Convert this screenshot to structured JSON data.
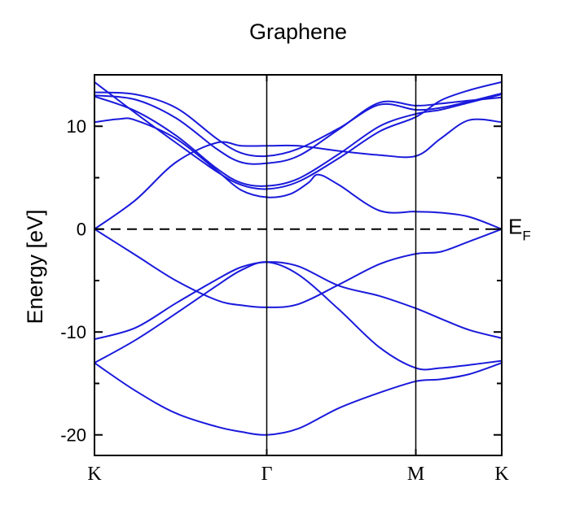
{
  "chart_data": {
    "type": "line",
    "title": "Graphene",
    "ylabel": "Energy [eV]",
    "ylim": [
      -22,
      15
    ],
    "yticks": [
      -20,
      -10,
      0,
      10
    ],
    "ytick_labels": [
      "-20",
      "-10",
      "0",
      "10"
    ],
    "xlim": [
      0,
      1
    ],
    "kpoints": [
      {
        "label": "K",
        "pos": 0.0
      },
      {
        "label": "Γ",
        "pos": 0.423
      },
      {
        "label": "M",
        "pos": 0.789
      },
      {
        "label": "K",
        "pos": 1.0
      }
    ],
    "fermi_level": {
      "energy": 0,
      "label": "E",
      "subscript": "F"
    },
    "line_color": "#1a1adc",
    "series": [
      {
        "x": [
          0,
          0.1,
          0.2,
          0.3,
          0.36,
          0.423,
          0.5,
          0.6,
          0.7,
          0.789,
          0.85,
          0.92,
          1.0
        ],
        "values": [
          -13,
          -15.7,
          -17.9,
          -19.2,
          -19.7,
          -20,
          -19.4,
          -17.4,
          -15.9,
          -14.8,
          -14.6,
          -14.1,
          -13
        ]
      },
      {
        "x": [
          0,
          0.1,
          0.2,
          0.3,
          0.36,
          0.423,
          0.5,
          0.6,
          0.7,
          0.789,
          0.85,
          0.92,
          1.0
        ],
        "values": [
          -13,
          -10.8,
          -8.2,
          -5.5,
          -4,
          -3.2,
          -4.4,
          -7.8,
          -11.5,
          -13.5,
          -13.5,
          -13.2,
          -12.8
        ]
      },
      {
        "x": [
          0,
          0.1,
          0.2,
          0.3,
          0.36,
          0.423,
          0.5,
          0.6,
          0.7,
          0.789,
          0.85,
          0.92,
          1.0
        ],
        "values": [
          -10.7,
          -9.6,
          -7.2,
          -4.9,
          -3.7,
          -3.2,
          -3.6,
          -5.5,
          -6.5,
          -7.7,
          -8.7,
          -9.8,
          -10.6
        ]
      },
      {
        "x": [
          0,
          0.1,
          0.2,
          0.3,
          0.36,
          0.423,
          0.5,
          0.6,
          0.7,
          0.789,
          0.85,
          0.92,
          1.0
        ],
        "values": [
          0,
          -2.5,
          -5,
          -6.9,
          -7.4,
          -7.6,
          -7.3,
          -5.4,
          -3.4,
          -2.4,
          -2.2,
          -1.2,
          0
        ]
      },
      {
        "x": [
          0,
          0.1,
          0.2,
          0.3,
          0.36,
          0.423,
          0.5,
          0.6,
          0.7,
          0.789,
          0.85,
          0.92,
          1.0
        ],
        "values": [
          0,
          2.8,
          6.5,
          8.4,
          8.1,
          8.1,
          8.1,
          7.6,
          7.2,
          7.1,
          8.8,
          10.6,
          10.4
        ]
      },
      {
        "x": [
          0,
          0.06,
          0.1,
          0.2,
          0.3,
          0.36,
          0.423,
          0.48,
          0.525,
          0.55,
          0.6,
          0.7,
          0.789,
          0.85,
          0.92,
          1.0
        ],
        "values": [
          10.4,
          10.7,
          10.6,
          8.8,
          5.7,
          3.8,
          3.1,
          3.4,
          4.5,
          5.3,
          4.3,
          1.8,
          1.7,
          1.6,
          1.2,
          0
        ]
      },
      {
        "x": [
          0,
          0.1,
          0.2,
          0.3,
          0.36,
          0.423,
          0.5,
          0.6,
          0.7,
          0.789,
          0.85,
          0.92,
          1.0
        ],
        "values": [
          13,
          12.6,
          10.8,
          7.8,
          6.5,
          6.4,
          7.1,
          9.7,
          12.3,
          12,
          12.2,
          12.5,
          12.8
        ]
      },
      {
        "x": [
          0,
          0.1,
          0.2,
          0.3,
          0.36,
          0.423,
          0.5,
          0.6,
          0.7,
          0.789,
          0.85,
          0.92,
          1.0
        ],
        "values": [
          13.3,
          13.1,
          11.8,
          8.8,
          7.4,
          7.1,
          7.8,
          9.8,
          12.1,
          11.6,
          11.8,
          12.4,
          13.2
        ]
      },
      {
        "x": [
          0,
          0.1,
          0.2,
          0.3,
          0.36,
          0.423,
          0.5,
          0.6,
          0.7,
          0.789,
          0.85,
          0.92,
          1.0
        ],
        "values": [
          12.9,
          11.5,
          9.1,
          5.9,
          4.5,
          4.2,
          4.9,
          7.3,
          10,
          11.2,
          11.6,
          12.3,
          13.1
        ]
      },
      {
        "x": [
          0,
          0.1,
          0.2,
          0.3,
          0.36,
          0.423,
          0.5,
          0.6,
          0.7,
          0.789,
          0.85,
          0.92,
          1.0
        ],
        "values": [
          14.3,
          11.3,
          8.4,
          5.6,
          4.3,
          3.9,
          4.6,
          6.9,
          9.5,
          10.9,
          12.5,
          13.5,
          14.3
        ]
      }
    ]
  }
}
